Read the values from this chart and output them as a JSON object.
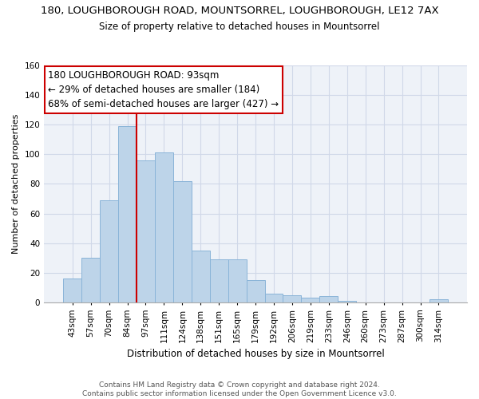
{
  "title1": "180, LOUGHBOROUGH ROAD, MOUNTSORREL, LOUGHBOROUGH, LE12 7AX",
  "title2": "Size of property relative to detached houses in Mountsorrel",
  "xlabel": "Distribution of detached houses by size in Mountsorrel",
  "ylabel": "Number of detached properties",
  "bar_labels": [
    "43sqm",
    "57sqm",
    "70sqm",
    "84sqm",
    "97sqm",
    "111sqm",
    "124sqm",
    "138sqm",
    "151sqm",
    "165sqm",
    "179sqm",
    "192sqm",
    "206sqm",
    "219sqm",
    "233sqm",
    "246sqm",
    "260sqm",
    "273sqm",
    "287sqm",
    "300sqm",
    "314sqm"
  ],
  "bar_values": [
    16,
    30,
    69,
    119,
    96,
    101,
    82,
    35,
    29,
    29,
    15,
    6,
    5,
    3,
    4,
    1,
    0,
    0,
    0,
    0,
    2
  ],
  "bar_color": "#bdd4e9",
  "bar_edge_color": "#8ab4d8",
  "vline_x_index": 3.5,
  "vline_color": "#cc0000",
  "annotation_title": "180 LOUGHBOROUGH ROAD: 93sqm",
  "annotation_line1": "← 29% of detached houses are smaller (184)",
  "annotation_line2": "68% of semi-detached houses are larger (427) →",
  "annotation_box_color": "#ffffff",
  "annotation_box_edge": "#cc0000",
  "footer1": "Contains HM Land Registry data © Crown copyright and database right 2024.",
  "footer2": "Contains public sector information licensed under the Open Government Licence v3.0.",
  "ylim": [
    0,
    160
  ],
  "yticks": [
    0,
    20,
    40,
    60,
    80,
    100,
    120,
    140,
    160
  ],
  "title1_fontsize": 9.5,
  "title2_fontsize": 8.5,
  "xlabel_fontsize": 8.5,
  "ylabel_fontsize": 8,
  "tick_fontsize": 7.5,
  "footer_fontsize": 6.5,
  "ann_fontsize": 8.5,
  "grid_color": "#d0d8e8",
  "bg_color": "#eef2f8"
}
